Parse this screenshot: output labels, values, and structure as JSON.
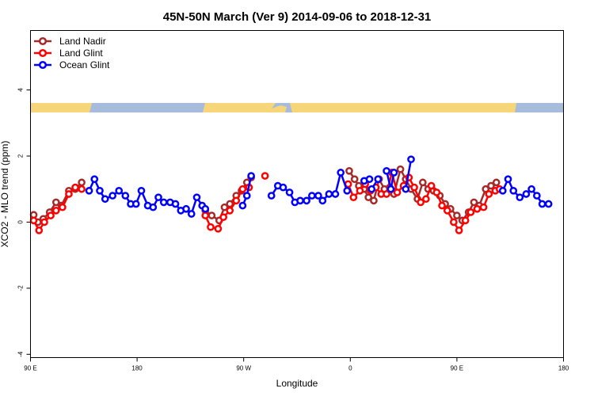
{
  "chart_data": {
    "type": "line",
    "title": "45N-50N March (Ver 9)   2014-09-06 to 2018-12-31",
    "xlabel": "Longitude",
    "ylabel": "XCO2 - MLO trend (ppm)",
    "xlim": [
      0,
      500
    ],
    "ylim": [
      -4.1,
      5.8
    ],
    "x_ticks": [
      {
        "value": 0,
        "label": "90 E"
      },
      {
        "value": 100,
        "label": "180"
      },
      {
        "value": 200,
        "label": "90 W"
      },
      {
        "value": 300,
        "label": "0"
      },
      {
        "value": 400,
        "label": "90 E"
      },
      {
        "value": 500,
        "label": "180"
      }
    ],
    "y_ticks": [
      -4,
      -2,
      0,
      2,
      4
    ],
    "legend_position": "top-left",
    "series": [
      {
        "name": "Land Nadir",
        "color": "#a52a2a",
        "segments": [
          [
            [
              3,
              0.22
            ],
            [
              7,
              0.0
            ],
            [
              12,
              0.1
            ],
            [
              18,
              0.3
            ],
            [
              24,
              0.6
            ],
            [
              29,
              0.5
            ],
            [
              36,
              0.95
            ],
            [
              42,
              1.0
            ],
            [
              48,
              1.2
            ]
          ],
          [
            [
              164,
              0.35
            ],
            [
              170,
              0.2
            ],
            [
              177,
              0.05
            ],
            [
              182,
              0.45
            ],
            [
              187,
              0.55
            ],
            [
              193,
              0.8
            ],
            [
              198,
              0.95
            ],
            [
              203,
              1.2
            ],
            [
              207,
              1.35
            ]
          ],
          [
            [
              299,
              1.55
            ],
            [
              304,
              1.3
            ],
            [
              308,
              1.1
            ],
            [
              313,
              1.0
            ],
            [
              317,
              0.75
            ],
            [
              322,
              0.65
            ],
            [
              327,
              1.3
            ],
            [
              332,
              1.0
            ],
            [
              337,
              1.05
            ],
            [
              341,
              0.85
            ],
            [
              347,
              1.6
            ],
            [
              352,
              1.3
            ],
            [
              357,
              1.0
            ],
            [
              363,
              0.7
            ],
            [
              368,
              1.2
            ],
            [
              373,
              1.0
            ],
            [
              378,
              0.95
            ],
            [
              384,
              0.8
            ],
            [
              389,
              0.55
            ],
            [
              394,
              0.4
            ],
            [
              400,
              0.2
            ],
            [
              405,
              0.05
            ],
            [
              411,
              0.3
            ],
            [
              416,
              0.6
            ],
            [
              421,
              0.5
            ],
            [
              427,
              1.0
            ],
            [
              432,
              1.1
            ],
            [
              437,
              1.2
            ]
          ]
        ]
      },
      {
        "name": "Land Glint",
        "color": "#ff0000",
        "segments": [
          [
            [
              3,
              0.05
            ],
            [
              8,
              -0.25
            ],
            [
              13,
              0.0
            ],
            [
              19,
              0.2
            ],
            [
              24,
              0.35
            ],
            [
              30,
              0.45
            ],
            [
              36,
              0.85
            ],
            [
              42,
              1.05
            ],
            [
              48,
              1.0
            ]
          ],
          [
            [
              164,
              0.2
            ],
            [
              169,
              -0.15
            ],
            [
              176,
              -0.2
            ],
            [
              181,
              0.15
            ],
            [
              187,
              0.35
            ],
            [
              193,
              0.65
            ],
            [
              199,
              1.0
            ],
            [
              205,
              1.05
            ]
          ],
          [
            [
              220,
              1.4
            ]
          ],
          [
            [
              298,
              1.15
            ],
            [
              303,
              0.75
            ],
            [
              309,
              0.95
            ],
            [
              314,
              1.15
            ],
            [
              319,
              0.95
            ],
            [
              324,
              1.05
            ],
            [
              329,
              0.85
            ],
            [
              334,
              0.85
            ],
            [
              339,
              1.5
            ],
            [
              344,
              0.9
            ],
            [
              350,
              1.1
            ],
            [
              355,
              1.35
            ],
            [
              360,
              1.05
            ],
            [
              366,
              0.6
            ],
            [
              371,
              0.7
            ],
            [
              376,
              1.1
            ],
            [
              381,
              0.9
            ],
            [
              386,
              0.5
            ],
            [
              391,
              0.35
            ],
            [
              397,
              0.0
            ],
            [
              402,
              -0.25
            ],
            [
              408,
              0.05
            ],
            [
              413,
              0.3
            ],
            [
              419,
              0.4
            ],
            [
              425,
              0.45
            ],
            [
              430,
              0.85
            ],
            [
              436,
              0.95
            ],
            [
              440,
              1.0
            ]
          ]
        ]
      },
      {
        "name": "Ocean Glint",
        "color": "#0000ff",
        "segments": [
          [
            [
              55,
              0.95
            ],
            [
              60,
              1.3
            ],
            [
              65,
              0.95
            ],
            [
              70,
              0.7
            ],
            [
              77,
              0.8
            ],
            [
              83,
              0.95
            ],
            [
              89,
              0.8
            ],
            [
              94,
              0.55
            ],
            [
              99,
              0.55
            ],
            [
              104,
              0.95
            ],
            [
              110,
              0.5
            ],
            [
              115,
              0.45
            ],
            [
              120,
              0.75
            ],
            [
              125,
              0.6
            ],
            [
              131,
              0.6
            ],
            [
              136,
              0.55
            ],
            [
              141,
              0.35
            ],
            [
              146,
              0.4
            ],
            [
              151,
              0.25
            ],
            [
              156,
              0.75
            ],
            [
              161,
              0.5
            ],
            [
              164,
              0.4
            ]
          ],
          [
            [
              199,
              0.5
            ],
            [
              203,
              0.8
            ],
            [
              207,
              1.4
            ]
          ],
          [
            [
              226,
              0.8
            ],
            [
              232,
              1.1
            ],
            [
              237,
              1.05
            ],
            [
              243,
              0.9
            ],
            [
              248,
              0.6
            ],
            [
              253,
              0.65
            ],
            [
              259,
              0.65
            ],
            [
              264,
              0.8
            ],
            [
              270,
              0.8
            ],
            [
              274,
              0.65
            ],
            [
              280,
              0.85
            ],
            [
              286,
              0.85
            ],
            [
              291,
              1.5
            ],
            [
              297,
              0.95
            ]
          ],
          [
            [
              313,
              1.25
            ],
            [
              318,
              1.3
            ]
          ],
          [
            [
              320,
              1.0
            ],
            [
              326,
              1.3
            ]
          ],
          [
            [
              334,
              1.55
            ],
            [
              338,
              1.0
            ],
            [
              341,
              1.5
            ]
          ],
          [
            [
              352,
              1.0
            ],
            [
              357,
              1.9
            ]
          ],
          [
            [
              443,
              0.95
            ],
            [
              448,
              1.3
            ],
            [
              453,
              0.95
            ],
            [
              459,
              0.75
            ],
            [
              465,
              0.85
            ],
            [
              470,
              1.0
            ],
            [
              475,
              0.8
            ],
            [
              480,
              0.55
            ],
            [
              486,
              0.55
            ]
          ]
        ]
      }
    ]
  }
}
